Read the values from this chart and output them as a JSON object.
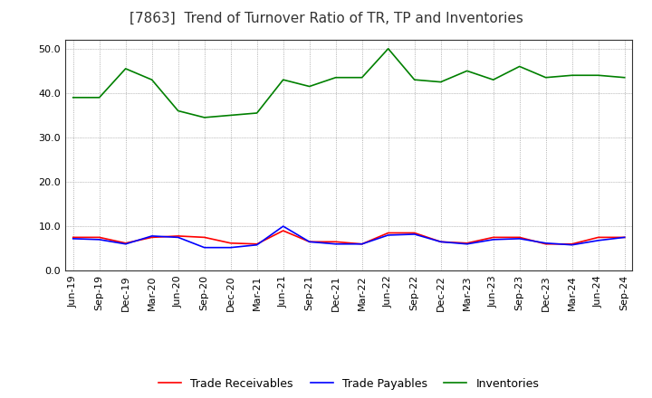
{
  "title": "[7863]  Trend of Turnover Ratio of TR, TP and Inventories",
  "x_labels": [
    "Jun-19",
    "Sep-19",
    "Dec-19",
    "Mar-20",
    "Jun-20",
    "Sep-20",
    "Dec-20",
    "Mar-21",
    "Jun-21",
    "Sep-21",
    "Dec-21",
    "Mar-22",
    "Jun-22",
    "Sep-22",
    "Dec-22",
    "Mar-23",
    "Jun-23",
    "Sep-23",
    "Dec-23",
    "Mar-24",
    "Jun-24",
    "Sep-24"
  ],
  "trade_receivables": [
    7.5,
    7.5,
    6.2,
    7.5,
    7.8,
    7.5,
    6.2,
    6.0,
    9.0,
    6.5,
    6.5,
    6.0,
    8.5,
    8.5,
    6.5,
    6.2,
    7.5,
    7.5,
    6.0,
    6.0,
    7.5,
    7.5
  ],
  "trade_payables": [
    7.2,
    7.0,
    6.0,
    7.8,
    7.5,
    5.2,
    5.2,
    5.8,
    10.0,
    6.5,
    6.0,
    6.0,
    8.0,
    8.2,
    6.5,
    6.0,
    7.0,
    7.2,
    6.2,
    5.8,
    6.8,
    7.5
  ],
  "inventories": [
    39.0,
    39.0,
    45.5,
    43.0,
    36.0,
    34.5,
    35.0,
    35.5,
    43.0,
    41.5,
    43.5,
    43.5,
    50.0,
    43.0,
    42.5,
    45.0,
    43.0,
    46.0,
    43.5,
    44.0,
    44.0,
    43.5
  ],
  "tr_color": "#ff0000",
  "tp_color": "#0000ff",
  "inv_color": "#008000",
  "ylim": [
    0,
    52
  ],
  "yticks": [
    0.0,
    10.0,
    20.0,
    30.0,
    40.0,
    50.0
  ],
  "bg_color": "#ffffff",
  "grid_color": "#999999",
  "title_fontsize": 11,
  "legend_fontsize": 9,
  "axis_fontsize": 8
}
